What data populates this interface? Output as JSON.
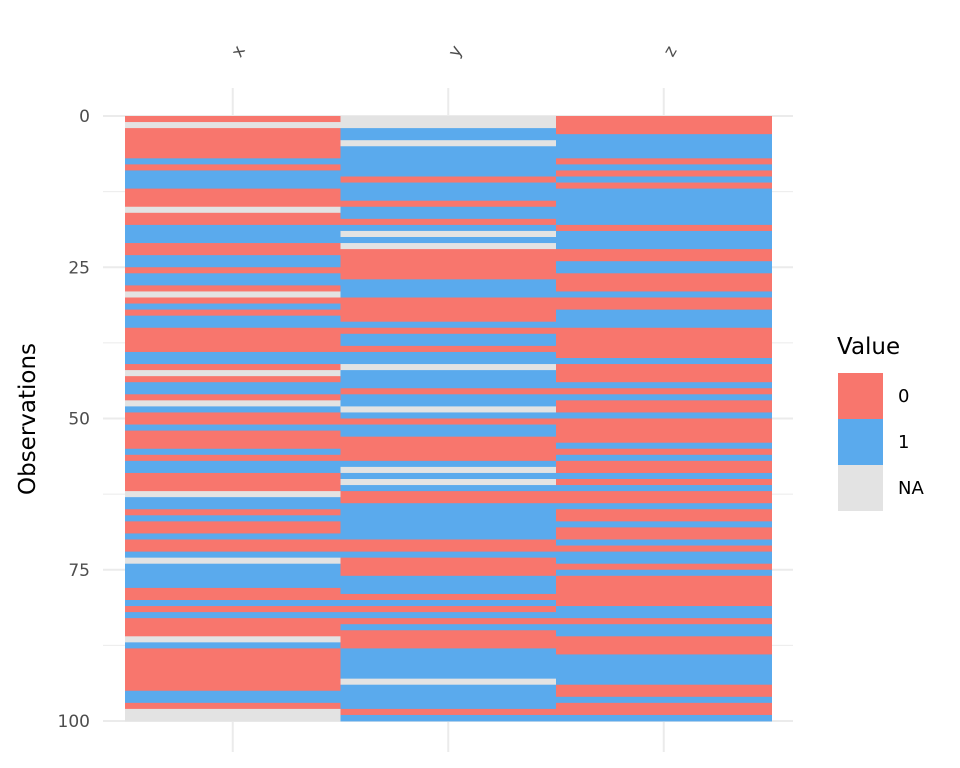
{
  "chart_data": {
    "type": "heatmap",
    "title": "",
    "xlabel": "",
    "ylabel": "Observations",
    "columns": [
      "x",
      "y",
      "z"
    ],
    "y_ticks": [
      0,
      25,
      50,
      75,
      100
    ],
    "ylim": [
      0,
      100
    ],
    "n_rows": 100,
    "legend": {
      "title": "Value",
      "placement": "right",
      "entries": [
        {
          "label": "0",
          "color": "#F8766D"
        },
        {
          "label": "1",
          "color": "#5AAAED"
        },
        {
          "label": "NA",
          "color": "#E3E3E3"
        }
      ]
    },
    "colors": {
      "0": "#F8766D",
      "1": "#5AAAED",
      "NA": "#E3E3E3",
      "gridline": "#EBEBEB"
    },
    "values": {
      "x": [
        "0",
        "NA",
        "0",
        "0",
        "0",
        "0",
        "0",
        "1",
        "0",
        "1",
        "1",
        "1",
        "0",
        "0",
        "0",
        "NA",
        "0",
        "0",
        "1",
        "1",
        "1",
        "0",
        "0",
        "1",
        "1",
        "0",
        "1",
        "1",
        "0",
        "NA",
        "0",
        "1",
        "0",
        "1",
        "1",
        "0",
        "0",
        "0",
        "0",
        "1",
        "1",
        "0",
        "NA",
        "0",
        "1",
        "1",
        "0",
        "NA",
        "1",
        "0",
        "0",
        "1",
        "0",
        "0",
        "0",
        "1",
        "0",
        "1",
        "1",
        "0",
        "0",
        "0",
        "NA",
        "1",
        "1",
        "0",
        "1",
        "0",
        "0",
        "1",
        "0",
        "0",
        "1",
        "NA",
        "1",
        "1",
        "1",
        "1",
        "0",
        "0",
        "1",
        "0",
        "1",
        "0",
        "0",
        "0",
        "NA",
        "1",
        "0",
        "0",
        "0",
        "0",
        "0",
        "0",
        "0",
        "1",
        "1",
        "0",
        "NA",
        "NA"
      ],
      "y": [
        "NA",
        "NA",
        "1",
        "1",
        "NA",
        "1",
        "1",
        "1",
        "1",
        "1",
        "0",
        "1",
        "1",
        "1",
        "0",
        "1",
        "1",
        "0",
        "1",
        "NA",
        "1",
        "NA",
        "0",
        "0",
        "0",
        "0",
        "0",
        "1",
        "1",
        "1",
        "0",
        "0",
        "0",
        "0",
        "1",
        "0",
        "1",
        "1",
        "0",
        "1",
        "1",
        "NA",
        "1",
        "1",
        "1",
        "0",
        "1",
        "1",
        "NA",
        "1",
        "0",
        "1",
        "1",
        "0",
        "0",
        "0",
        "0",
        "1",
        "NA",
        "1",
        "NA",
        "1",
        "0",
        "0",
        "1",
        "1",
        "1",
        "1",
        "1",
        "1",
        "0",
        "0",
        "1",
        "0",
        "0",
        "0",
        "1",
        "1",
        "1",
        "0",
        "1",
        "0",
        "1",
        "0",
        "1",
        "0",
        "0",
        "0",
        "1",
        "1",
        "1",
        "1",
        "1",
        "NA",
        "1",
        "1",
        "1",
        "1",
        "0",
        "1"
      ],
      "z": [
        "0",
        "0",
        "0",
        "1",
        "1",
        "1",
        "1",
        "0",
        "1",
        "0",
        "1",
        "0",
        "1",
        "1",
        "1",
        "1",
        "1",
        "1",
        "0",
        "1",
        "1",
        "1",
        "0",
        "0",
        "1",
        "1",
        "0",
        "0",
        "0",
        "1",
        "0",
        "0",
        "1",
        "1",
        "1",
        "0",
        "0",
        "0",
        "0",
        "0",
        "1",
        "0",
        "0",
        "0",
        "1",
        "0",
        "1",
        "0",
        "0",
        "1",
        "0",
        "0",
        "0",
        "0",
        "1",
        "0",
        "1",
        "0",
        "0",
        "1",
        "0",
        "1",
        "0",
        "0",
        "1",
        "0",
        "0",
        "1",
        "0",
        "0",
        "1",
        "0",
        "1",
        "1",
        "0",
        "1",
        "0",
        "0",
        "0",
        "0",
        "0",
        "1",
        "1",
        "0",
        "1",
        "1",
        "0",
        "0",
        "0",
        "1",
        "1",
        "1",
        "1",
        "1",
        "0",
        "0",
        "1",
        "0",
        "0",
        "1"
      ]
    }
  }
}
